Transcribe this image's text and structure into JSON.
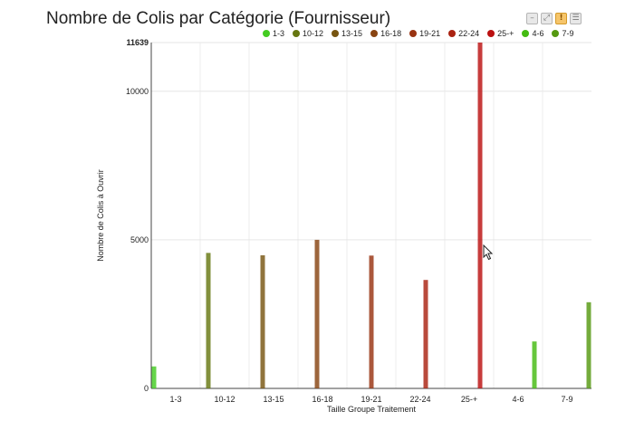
{
  "toolbar": {
    "buttons": [
      {
        "icon": "minimize-icon",
        "glyph": "–"
      },
      {
        "icon": "fullscreen-icon",
        "glyph": "⤢"
      },
      {
        "icon": "alert-icon",
        "glyph": "!"
      },
      {
        "icon": "menu-icon",
        "glyph": "☰"
      }
    ]
  },
  "chart_data": {
    "type": "bar",
    "title": "Nombre de Colis par Catégorie (Fournisseur)",
    "xlabel": "Taille Groupe Traitement",
    "ylabel": "Nombre de Colis à Ouvrir",
    "categories": [
      "1-3",
      "10-12",
      "13-15",
      "16-18",
      "19-21",
      "22-24",
      "25-+",
      "4-6",
      "7-9"
    ],
    "ylim": [
      0,
      11639
    ],
    "yticks": [
      0,
      5000,
      10000,
      11639
    ],
    "grid": true,
    "legend_position": "top-right",
    "series": [
      {
        "name": "1-3",
        "color": "#44cc22",
        "category": "1-3",
        "value": 740
      },
      {
        "name": "10-12",
        "color": "#667711",
        "category": "10-12",
        "value": 4560
      },
      {
        "name": "13-15",
        "color": "#775511",
        "category": "13-15",
        "value": 4480
      },
      {
        "name": "16-18",
        "color": "#884411",
        "category": "16-18",
        "value": 5000
      },
      {
        "name": "19-21",
        "color": "#993311",
        "category": "19-21",
        "value": 4470
      },
      {
        "name": "22-24",
        "color": "#aa2211",
        "category": "22-24",
        "value": 3650
      },
      {
        "name": "25-+",
        "color": "#bb1111",
        "category": "25-+",
        "value": 11639
      },
      {
        "name": "4-6",
        "color": "#44bb11",
        "category": "4-6",
        "value": 1580
      },
      {
        "name": "7-9",
        "color": "#559911",
        "category": "7-9",
        "value": 2900
      }
    ]
  }
}
